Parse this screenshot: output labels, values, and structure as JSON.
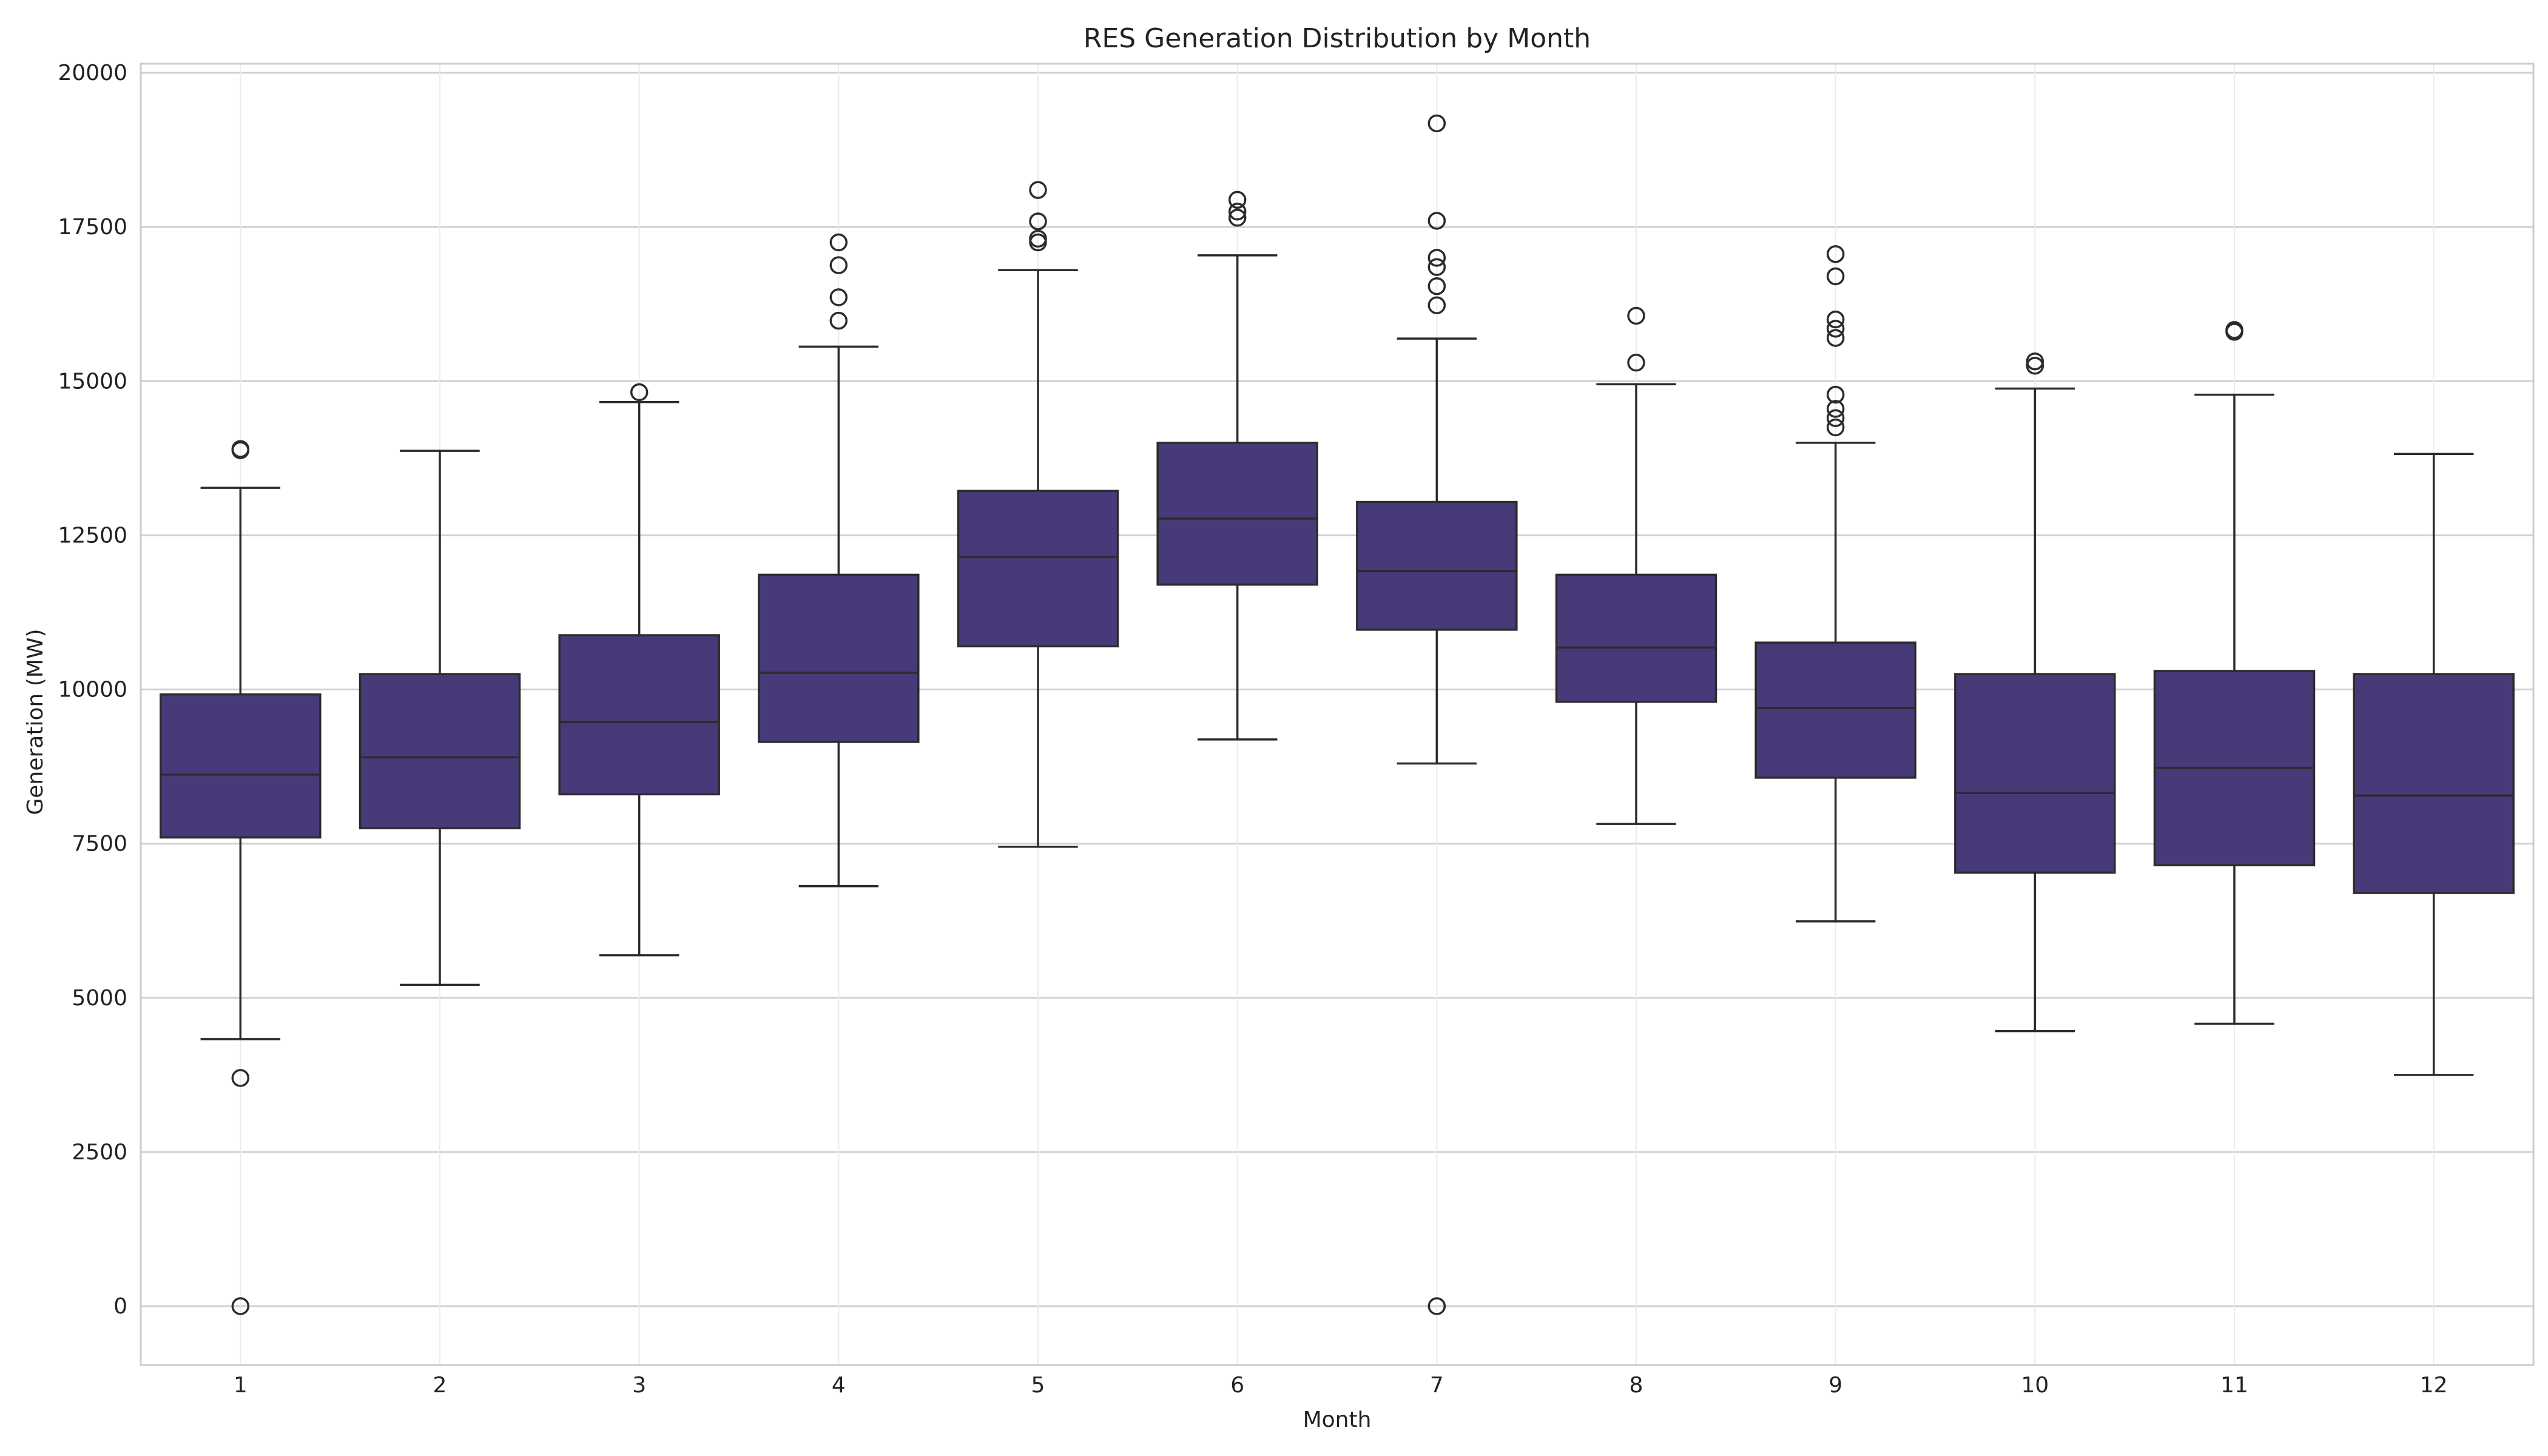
{
  "chart_data": {
    "type": "box",
    "title": "RES Generation Distribution by Month",
    "xlabel": "Month",
    "ylabel": "Generation (MW)",
    "ylim": [
      -950,
      20150
    ],
    "yticks": [
      0,
      2500,
      5000,
      7500,
      10000,
      12500,
      15000,
      17500,
      20000
    ],
    "grid": true,
    "box_color": "#483a78",
    "edge_color": "#2b2b2b",
    "categories": [
      "1",
      "2",
      "3",
      "4",
      "5",
      "6",
      "7",
      "8",
      "9",
      "10",
      "11",
      "12"
    ],
    "boxes": [
      {
        "month": "1",
        "whisker_low": 4330,
        "q1": 7600,
        "median": 8620,
        "q3": 9920,
        "whisker_high": 13270,
        "outliers": [
          13880,
          13900,
          3700,
          0
        ]
      },
      {
        "month": "2",
        "whisker_low": 5210,
        "q1": 7750,
        "median": 8900,
        "q3": 10250,
        "whisker_high": 13870,
        "outliers": []
      },
      {
        "month": "3",
        "whisker_low": 5690,
        "q1": 8300,
        "median": 9470,
        "q3": 10880,
        "whisker_high": 14660,
        "outliers": [
          14820
        ]
      },
      {
        "month": "4",
        "whisker_low": 6810,
        "q1": 9150,
        "median": 10270,
        "q3": 11860,
        "whisker_high": 15560,
        "outliers": [
          15980,
          16360,
          16880,
          17250
        ]
      },
      {
        "month": "5",
        "whisker_low": 7450,
        "q1": 10700,
        "median": 12150,
        "q3": 13220,
        "whisker_high": 16800,
        "outliers": [
          17250,
          17310,
          17590,
          18100
        ]
      },
      {
        "month": "6",
        "whisker_low": 9190,
        "q1": 11700,
        "median": 12770,
        "q3": 14000,
        "whisker_high": 17040,
        "outliers": [
          17650,
          17750,
          17940
        ]
      },
      {
        "month": "7",
        "whisker_low": 8800,
        "q1": 10970,
        "median": 11920,
        "q3": 13040,
        "whisker_high": 15690,
        "outliers": [
          16230,
          16540,
          16850,
          17000,
          17600,
          19180,
          0
        ]
      },
      {
        "month": "8",
        "whisker_low": 7820,
        "q1": 9800,
        "median": 10680,
        "q3": 11860,
        "whisker_high": 14950,
        "outliers": [
          15300,
          16060
        ]
      },
      {
        "month": "9",
        "whisker_low": 6240,
        "q1": 8570,
        "median": 9700,
        "q3": 10760,
        "whisker_high": 14000,
        "outliers": [
          14250,
          14400,
          14550,
          14780,
          15700,
          15850,
          16000,
          16700,
          17060
        ]
      },
      {
        "month": "10",
        "whisker_low": 4460,
        "q1": 7030,
        "median": 8320,
        "q3": 10250,
        "whisker_high": 14880,
        "outliers": [
          15250,
          15320
        ]
      },
      {
        "month": "11",
        "whisker_low": 4580,
        "q1": 7150,
        "median": 8730,
        "q3": 10300,
        "whisker_high": 14780,
        "outliers": [
          15800,
          15830
        ]
      },
      {
        "month": "12",
        "whisker_low": 3750,
        "q1": 6700,
        "median": 8280,
        "q3": 10250,
        "whisker_high": 13820,
        "outliers": []
      }
    ]
  }
}
